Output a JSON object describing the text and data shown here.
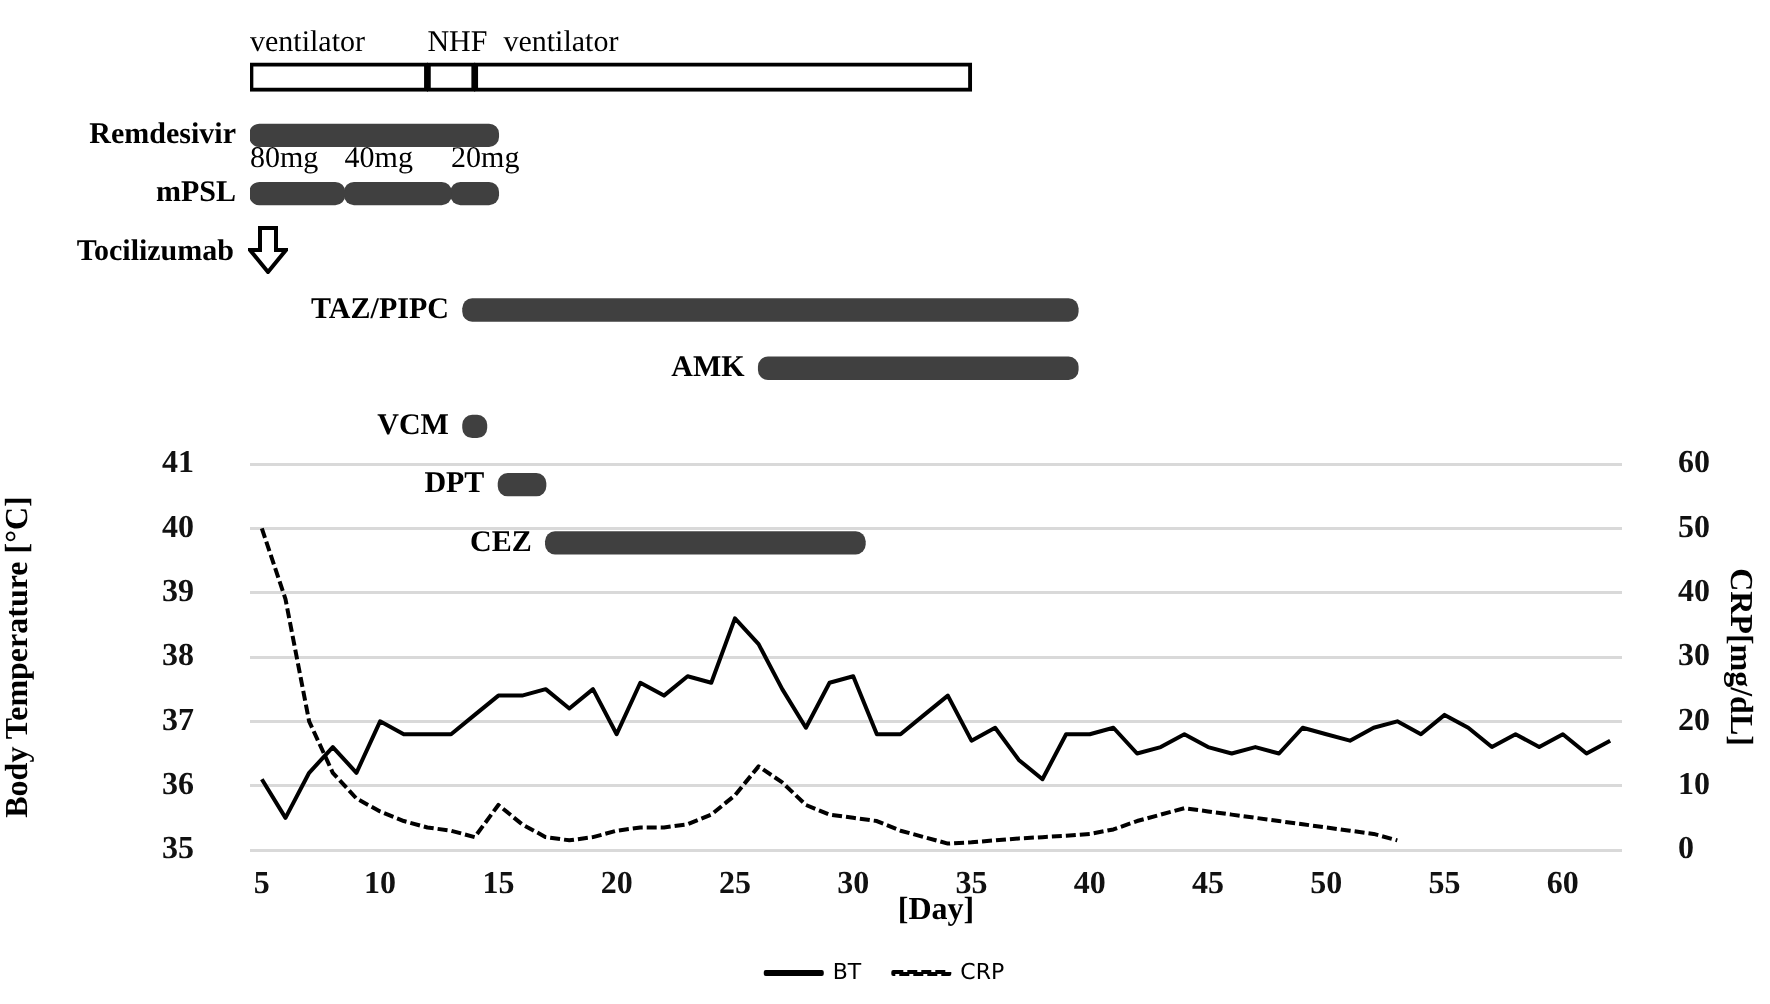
{
  "chart_data": [
    {
      "type": "bar",
      "orientation": "horizontal",
      "categories": [
        null,
        "Remdesivir",
        "mPSL",
        "Tocilizumab",
        "TAZ/PIPC",
        "AMK",
        "VCM",
        "DPT",
        "CEZ"
      ],
      "xlim": [
        4.5,
        62.5
      ],
      "tick_labels": "y",
      "series": [
        {
          "name": "ventilator",
          "color": "#ffffff",
          "base": [
            4.5,
            null,
            null,
            null,
            null,
            null,
            null,
            null,
            null
          ],
          "values": [
            7.5,
            null,
            null,
            null,
            null,
            null,
            null,
            null,
            null
          ]
        },
        {
          "name": "NHF",
          "color": "#ffffff",
          "base": [
            12,
            null,
            null,
            null,
            null,
            null,
            null,
            null,
            null
          ],
          "values": [
            2,
            null,
            null,
            null,
            null,
            null,
            null,
            null,
            null
          ]
        },
        {
          "name": "ventilator",
          "color": "#ffffff",
          "base": [
            14,
            null,
            null,
            null,
            null,
            null,
            null,
            null,
            null
          ],
          "values": [
            21,
            null,
            null,
            null,
            null,
            null,
            null,
            null,
            null
          ]
        },
        {
          "name": "80mg",
          "color": "#404040",
          "base": [
            null,
            null,
            4.5,
            null,
            null,
            null,
            null,
            null,
            null
          ],
          "values": [
            null,
            null,
            4,
            null,
            null,
            null,
            null,
            null,
            null
          ]
        },
        {
          "name": "40mg",
          "color": "#404040",
          "base": [
            null,
            null,
            8.5,
            null,
            null,
            null,
            null,
            null,
            null
          ],
          "values": [
            null,
            null,
            4.5,
            null,
            null,
            null,
            null,
            null,
            null
          ]
        },
        {
          "name": "20mg",
          "color": "#404040",
          "base": [
            null,
            null,
            13,
            null,
            null,
            null,
            null,
            null,
            null
          ],
          "values": [
            null,
            null,
            2,
            null,
            null,
            null,
            null,
            null,
            null
          ]
        },
        {
          "color": "#404040",
          "base": [
            null,
            4.5,
            null,
            null,
            13.5,
            26,
            13.5,
            15,
            17
          ],
          "values": [
            null,
            10.5,
            null,
            null,
            26,
            13.5,
            1,
            2,
            13.5
          ]
        }
      ]
    },
    {
      "type": "line",
      "xlabel": "[Day]",
      "ylabel": "Body Temperature [°C]",
      "y2label": "CRP[mg/dL]",
      "xlim": [
        4.5,
        62.5
      ],
      "xticks": [
        5,
        10,
        15,
        20,
        25,
        30,
        35,
        40,
        45,
        50,
        55,
        60
      ],
      "ylim": [
        35,
        41
      ],
      "yticks": [
        35,
        36,
        37,
        38,
        39,
        40,
        41
      ],
      "y2lim": [
        0,
        60
      ],
      "y2ticks": [
        0,
        10,
        20,
        30,
        40,
        50,
        60
      ],
      "grid": "y",
      "legend": "bottom",
      "marker": "none",
      "series": [
        {
          "name": "BT",
          "color": "#000000",
          "line_style": "solid",
          "x": [
            5,
            6,
            7,
            8,
            9,
            10,
            11,
            12,
            13,
            14,
            15,
            16,
            17,
            18,
            19,
            20,
            21,
            22,
            23,
            24,
            25,
            26,
            27,
            28,
            29,
            30,
            31,
            32,
            33,
            34,
            35,
            36,
            37,
            38,
            39,
            40,
            41,
            42,
            43,
            44,
            45,
            46,
            47,
            48,
            49,
            50,
            51,
            52,
            53,
            54,
            55,
            56,
            57,
            58,
            59,
            60,
            61,
            62
          ],
          "values": [
            36.1,
            35.5,
            36.2,
            36.6,
            36.2,
            37.0,
            36.8,
            36.8,
            36.8,
            37.1,
            37.4,
            37.4,
            37.5,
            37.2,
            37.5,
            36.8,
            37.6,
            37.4,
            37.7,
            37.6,
            38.6,
            38.2,
            37.5,
            36.9,
            37.6,
            37.7,
            36.8,
            36.8,
            37.1,
            37.4,
            36.7,
            36.9,
            36.4,
            36.1,
            36.8,
            36.8,
            36.9,
            36.5,
            36.6,
            36.8,
            36.6,
            36.5,
            36.6,
            36.5,
            36.9,
            36.8,
            36.7,
            36.9,
            37.0,
            36.8,
            37.1,
            36.9,
            36.6,
            36.8,
            36.6,
            36.8,
            36.5,
            36.7
          ]
        },
        {
          "name": "CRP",
          "color": "#000000",
          "line_style": "dashed",
          "axis": "y2",
          "x": [
            5,
            6,
            7,
            8,
            9,
            10,
            11,
            12,
            13,
            14,
            15,
            16,
            17,
            18,
            19,
            20,
            21,
            22,
            23,
            24,
            25,
            26,
            27,
            28,
            29,
            30,
            31,
            32,
            33,
            34,
            35,
            36,
            37,
            38,
            39,
            40,
            41,
            42,
            43,
            44,
            45,
            46,
            47,
            48,
            49,
            50,
            51,
            52,
            53
          ],
          "values": [
            50,
            39,
            20,
            12,
            8,
            6,
            4.5,
            3.5,
            3,
            2,
            7,
            4,
            2,
            1.5,
            2,
            3,
            3.5,
            3.5,
            4,
            5.5,
            8.5,
            13,
            10.5,
            7,
            5.5,
            5,
            4.5,
            3,
            2,
            1,
            1.2,
            1.5,
            1.8,
            2,
            2.2,
            2.5,
            3.2,
            4.5,
            5.5,
            6.5,
            6,
            5.5,
            5,
            4.5,
            4,
            3.5,
            3,
            2.5,
            1.5
          ]
        }
      ]
    }
  ]
}
